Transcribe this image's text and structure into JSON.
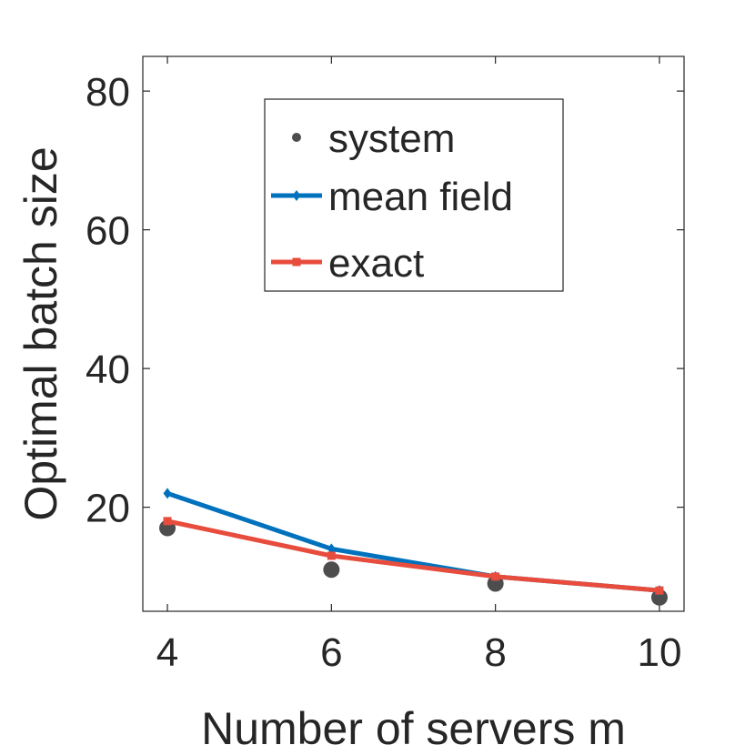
{
  "chart_data": {
    "type": "line",
    "title": "",
    "xlabel": "Number of servers m",
    "ylabel": "Optimal batch size",
    "xlim": [
      3.7,
      10.3
    ],
    "ylim": [
      5,
      85
    ],
    "xticks": [
      4,
      6,
      8,
      10
    ],
    "yticks": [
      20,
      40,
      60,
      80
    ],
    "grid": false,
    "legend_position": "top",
    "series": [
      {
        "name": "system",
        "style": "markers",
        "marker": "circle",
        "color": "#4d4d4d",
        "x": [
          4,
          6,
          8,
          10
        ],
        "y": [
          17,
          11,
          9,
          7
        ]
      },
      {
        "name": "mean field",
        "style": "line-markers",
        "marker": "diamond",
        "color": "#0072bd",
        "x": [
          4,
          6,
          8,
          10
        ],
        "y": [
          22,
          14,
          10,
          8
        ]
      },
      {
        "name": "exact",
        "style": "line-markers",
        "marker": "square",
        "color": "#e74c3c",
        "x": [
          4,
          6,
          8,
          10
        ],
        "y": [
          18,
          13,
          10,
          8
        ]
      }
    ]
  }
}
